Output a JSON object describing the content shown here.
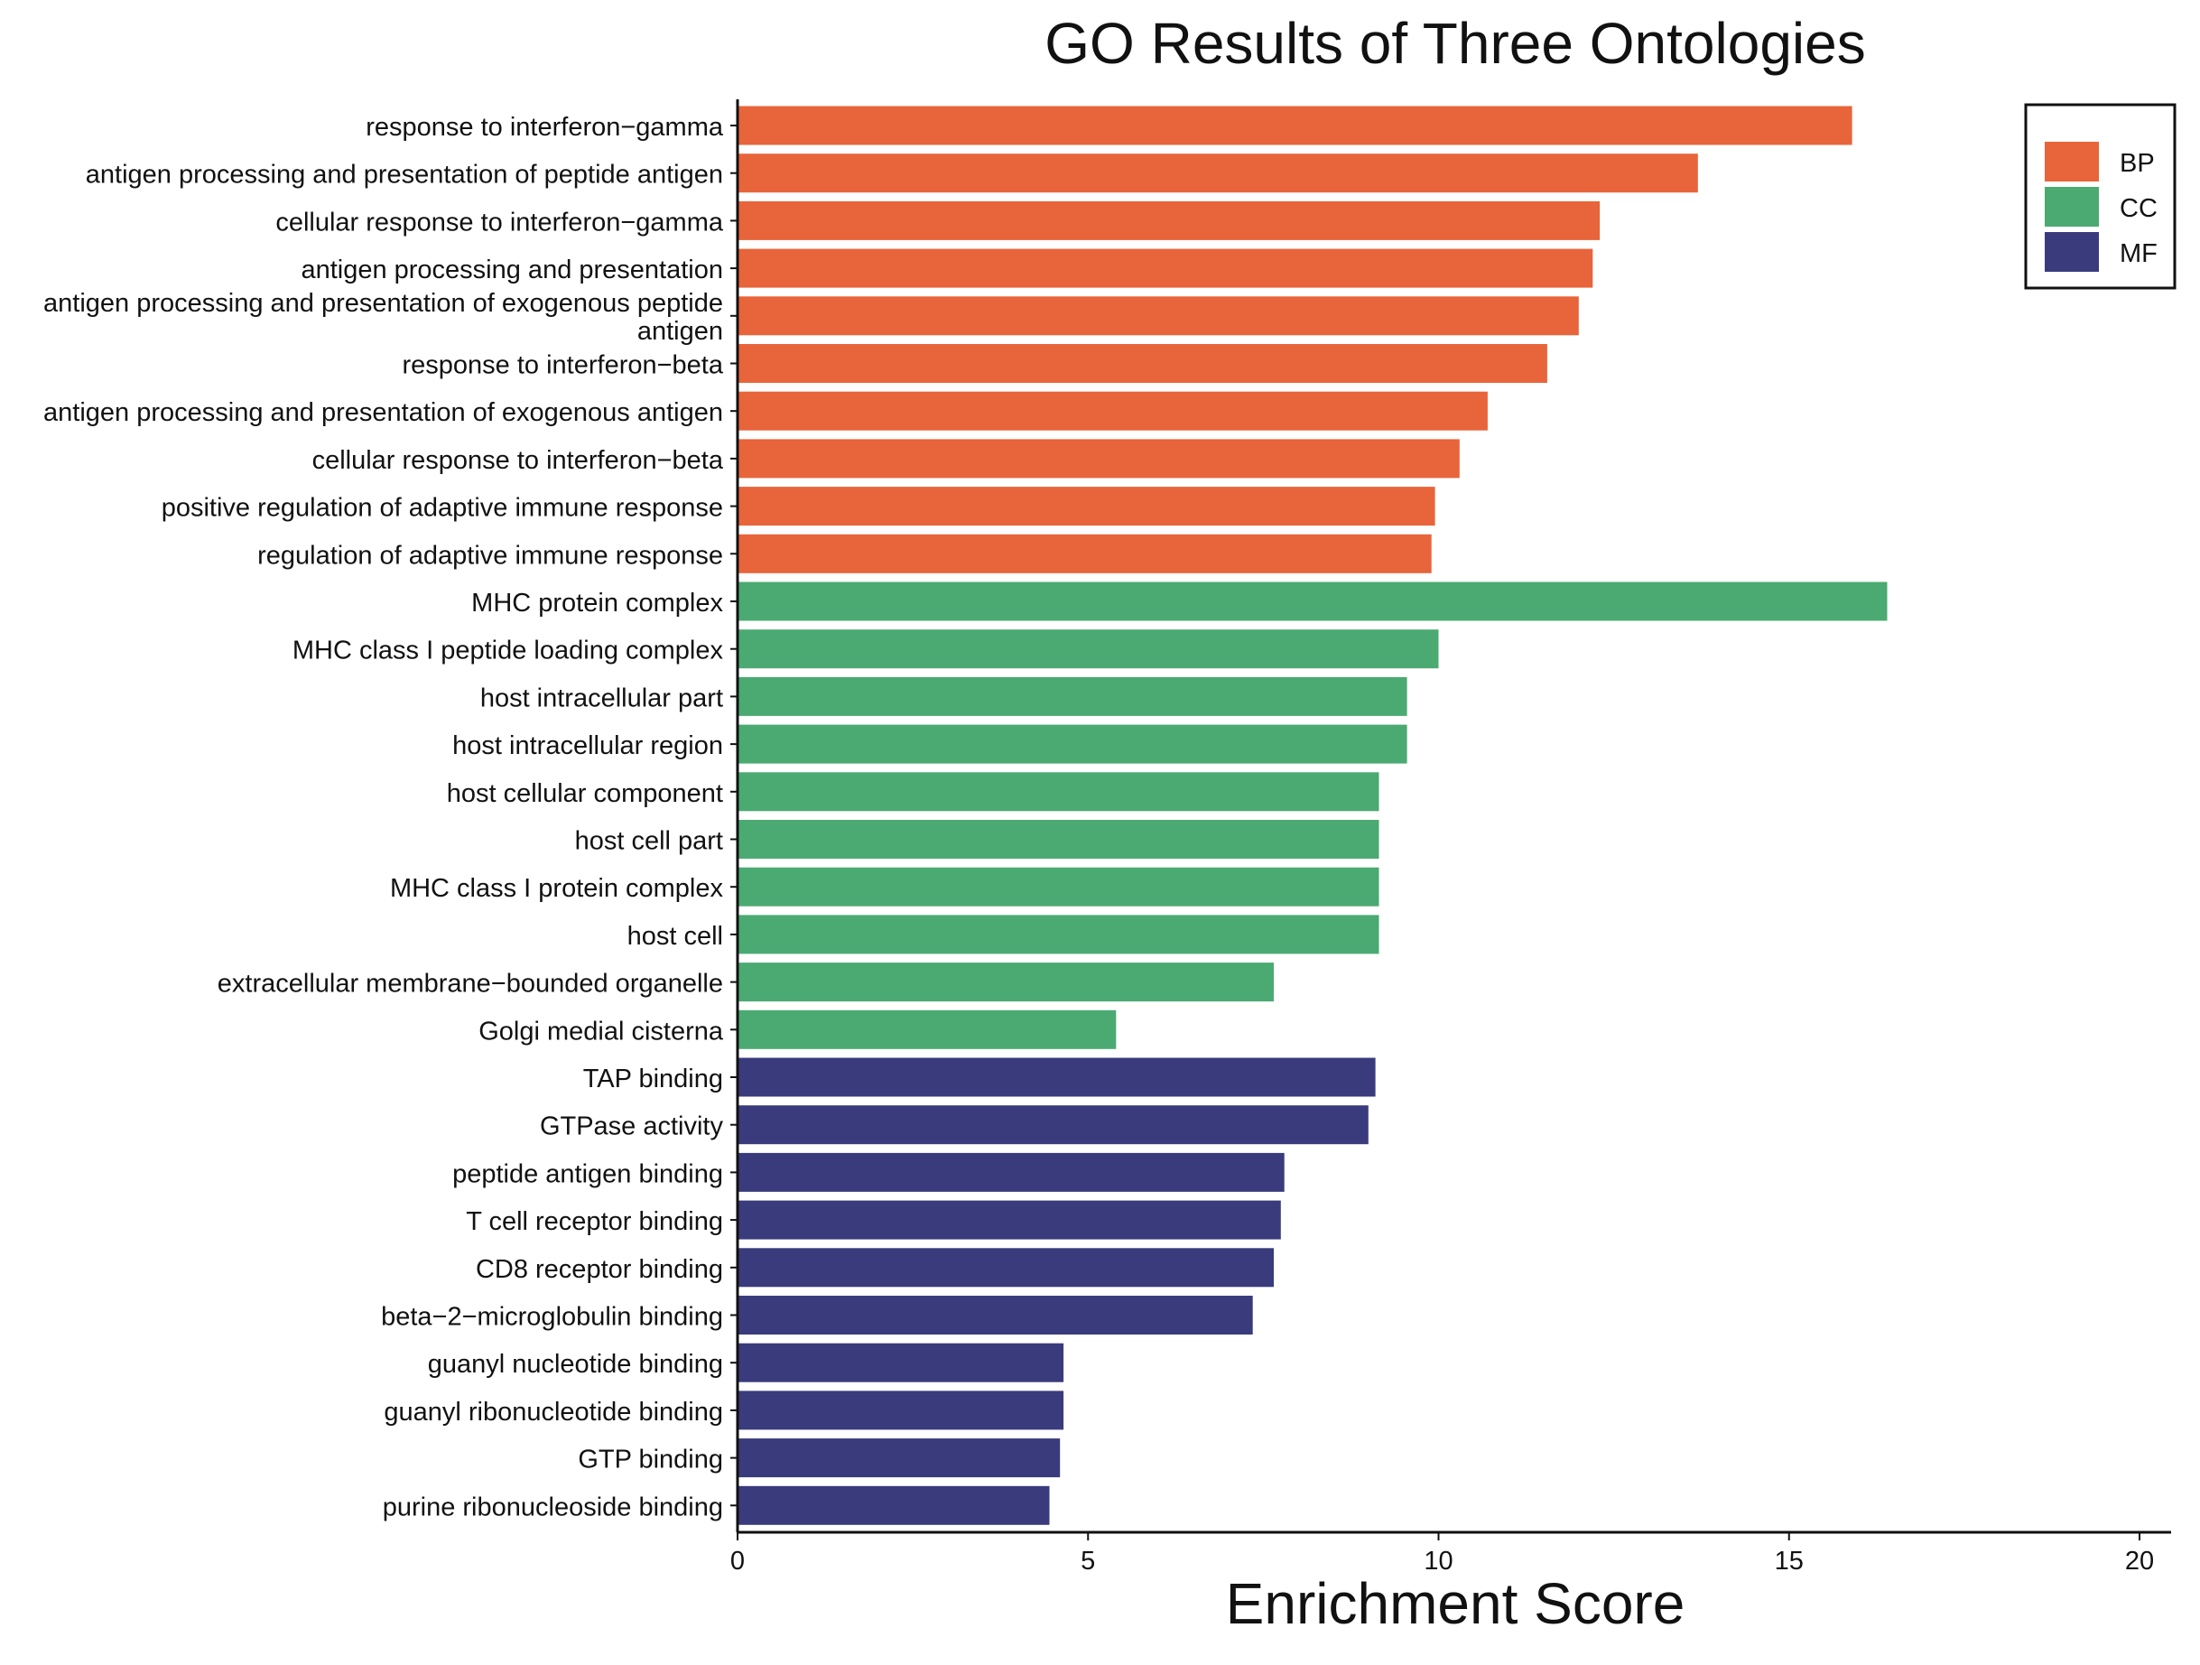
{
  "chart_data": {
    "type": "bar",
    "orientation": "horizontal",
    "title": "GO Results of Three Ontologies",
    "xlabel": "Enrichment Score",
    "ylabel": "",
    "xlim": [
      0,
      20
    ],
    "xticks": [
      0,
      5,
      10,
      15,
      20
    ],
    "grid": false,
    "legend_position": "top-right",
    "series": [
      {
        "name": "BP",
        "color": "#E8643A"
      },
      {
        "name": "CC",
        "color": "#4BAA72"
      },
      {
        "name": "MF",
        "color": "#3A3B7C"
      }
    ],
    "bars": [
      {
        "label": "response to interferon−gamma",
        "value": 15.9,
        "series": "BP"
      },
      {
        "label": "antigen processing and presentation of peptide antigen",
        "value": 13.7,
        "series": "BP"
      },
      {
        "label": "cellular response to interferon−gamma",
        "value": 12.3,
        "series": "BP"
      },
      {
        "label": "antigen processing and presentation",
        "value": 12.2,
        "series": "BP"
      },
      {
        "label": "antigen processing and presentation of exogenous peptide antigen",
        "label_lines": [
          "antigen processing and presentation of exogenous peptide",
          "antigen"
        ],
        "value": 12.0,
        "series": "BP"
      },
      {
        "label": "response to interferon−beta",
        "value": 11.55,
        "series": "BP"
      },
      {
        "label": "antigen processing and presentation of exogenous antigen",
        "value": 10.7,
        "series": "BP"
      },
      {
        "label": "cellular response to interferon−beta",
        "value": 10.3,
        "series": "BP"
      },
      {
        "label": "positive regulation of adaptive immune response",
        "value": 9.95,
        "series": "BP"
      },
      {
        "label": "regulation of adaptive immune response",
        "value": 9.9,
        "series": "BP"
      },
      {
        "label": "MHC protein complex",
        "value": 16.4,
        "series": "CC"
      },
      {
        "label": "MHC class I peptide loading complex",
        "value": 10.0,
        "series": "CC"
      },
      {
        "label": "host intracellular part",
        "value": 9.55,
        "series": "CC"
      },
      {
        "label": "host intracellular region",
        "value": 9.55,
        "series": "CC"
      },
      {
        "label": "host cellular component",
        "value": 9.15,
        "series": "CC"
      },
      {
        "label": "host cell part",
        "value": 9.15,
        "series": "CC"
      },
      {
        "label": "MHC class I protein complex",
        "value": 9.15,
        "series": "CC"
      },
      {
        "label": "host cell",
        "value": 9.15,
        "series": "CC"
      },
      {
        "label": "extracellular membrane−bounded organelle",
        "value": 7.65,
        "series": "CC"
      },
      {
        "label": "Golgi medial cisterna",
        "value": 5.4,
        "series": "CC"
      },
      {
        "label": "TAP binding",
        "value": 9.1,
        "series": "MF"
      },
      {
        "label": "GTPase activity",
        "value": 9.0,
        "series": "MF"
      },
      {
        "label": "peptide antigen binding",
        "value": 7.8,
        "series": "MF"
      },
      {
        "label": "T cell receptor binding",
        "value": 7.75,
        "series": "MF"
      },
      {
        "label": "CD8 receptor binding",
        "value": 7.65,
        "series": "MF"
      },
      {
        "label": "beta−2−microglobulin binding",
        "value": 7.35,
        "series": "MF"
      },
      {
        "label": "guanyl nucleotide binding",
        "value": 4.65,
        "series": "MF"
      },
      {
        "label": "guanyl ribonucleotide binding",
        "value": 4.65,
        "series": "MF"
      },
      {
        "label": "GTP binding",
        "value": 4.6,
        "series": "MF"
      },
      {
        "label": "purine ribonucleoside binding",
        "value": 4.45,
        "series": "MF"
      }
    ]
  }
}
